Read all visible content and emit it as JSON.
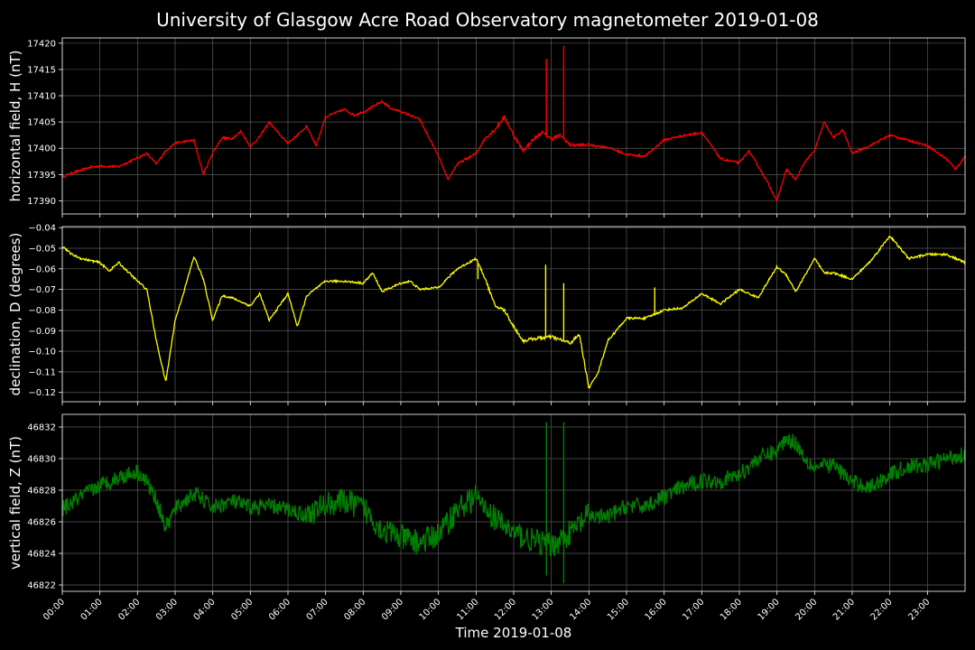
{
  "title": "University of Glasgow Acre Road Observatory magnetometer 2019-01-08",
  "xlabel": "Time 2019-01-08",
  "chart_data": {
    "type": "line",
    "x_ticks": [
      "00:00",
      "01:00",
      "02:00",
      "03:00",
      "04:00",
      "05:00",
      "06:00",
      "07:00",
      "08:00",
      "09:00",
      "10:00",
      "11:00",
      "12:00",
      "13:00",
      "14:00",
      "15:00",
      "16:00",
      "17:00",
      "18:00",
      "19:00",
      "20:00",
      "21:00",
      "22:00",
      "23:00"
    ],
    "xlim_hours": [
      0,
      24
    ],
    "grid": true,
    "background": "#000000",
    "panels": [
      {
        "ylabel": "horizontal field, H (nT)",
        "color": "#ff0000",
        "ylim": [
          17387.5,
          17421
        ],
        "yticks": [
          17390,
          17395,
          17400,
          17405,
          17410,
          17415,
          17420
        ],
        "ytick_labels": [
          "17390",
          "17395",
          "17400",
          "17405",
          "17410",
          "17415",
          "17420"
        ],
        "x_hours": [
          0,
          0.25,
          0.5,
          0.75,
          1,
          1.5,
          2,
          2.25,
          2.5,
          2.75,
          3,
          3.5,
          3.75,
          4,
          4.25,
          4.5,
          4.75,
          5,
          5.25,
          5.5,
          5.75,
          6,
          6.25,
          6.5,
          6.75,
          7,
          7.5,
          7.75,
          8,
          8.5,
          8.75,
          9,
          9.5,
          10,
          10.25,
          10.5,
          11,
          11.25,
          11.5,
          11.75,
          12,
          12.25,
          12.5,
          12.75,
          13,
          13.25,
          13.5,
          14,
          14.5,
          15,
          15.5,
          16,
          16.5,
          17,
          17.5,
          18,
          18.25,
          18.5,
          18.75,
          19,
          19.25,
          19.5,
          19.75,
          20,
          20.25,
          20.5,
          20.75,
          21,
          21.5,
          22,
          22.5,
          23,
          23.5,
          23.75,
          24
        ],
        "values": [
          17394.5,
          17395.3,
          17395.8,
          17396.4,
          17396.6,
          17396.5,
          17398.2,
          17399.0,
          17397.0,
          17399.5,
          17401.0,
          17401.5,
          17395.0,
          17399.2,
          17402.0,
          17401.8,
          17403.2,
          17400.3,
          17402.2,
          17405.0,
          17402.8,
          17401.0,
          17402.5,
          17404.2,
          17400.5,
          17406.0,
          17407.4,
          17406.3,
          17406.9,
          17408.9,
          17407.5,
          17407.0,
          17405.5,
          17398.5,
          17394.0,
          17397.0,
          17399.0,
          17402.0,
          17403.5,
          17406.0,
          17402.5,
          17399.5,
          17401.5,
          17403.0,
          17401.8,
          17402.5,
          17400.6,
          17400.6,
          17400.2,
          17398.8,
          17398.5,
          17401.6,
          17402.4,
          17403.0,
          17398.0,
          17397.2,
          17399.5,
          17396.6,
          17393.5,
          17390.0,
          17396.0,
          17394.0,
          17397.5,
          17399.5,
          17405.0,
          17402.0,
          17403.5,
          17399.0,
          17400.6,
          17402.5,
          17401.5,
          17400.5,
          17398.0,
          17396.0,
          17398.5
        ],
        "spikes": [
          {
            "x_hours": 12.87,
            "value": 17417.0
          },
          {
            "x_hours": 13.33,
            "value": 17419.5
          }
        ]
      },
      {
        "ylabel": "declination, D (degrees)",
        "color": "#ffff00",
        "ylim": [
          -0.1245,
          -0.0395
        ],
        "yticks": [
          -0.12,
          -0.11,
          -0.1,
          -0.09,
          -0.08,
          -0.07,
          -0.06,
          -0.05,
          -0.04
        ],
        "ytick_labels": [
          "−0.12",
          "−0.11",
          "−0.10",
          "−0.09",
          "−0.08",
          "−0.07",
          "−0.06",
          "−0.05",
          "−0.04"
        ],
        "x_hours": [
          0,
          0.25,
          0.5,
          1,
          1.25,
          1.5,
          2,
          2.25,
          2.5,
          2.75,
          3,
          3.25,
          3.5,
          3.75,
          4,
          4.25,
          4.5,
          5,
          5.25,
          5.5,
          6,
          6.25,
          6.5,
          7,
          7.5,
          8,
          8.25,
          8.5,
          9,
          9.25,
          9.5,
          10,
          10.5,
          11,
          11.25,
          11.5,
          11.75,
          12,
          12.25,
          12.5,
          13,
          13.5,
          13.75,
          14,
          14.25,
          14.5,
          15,
          15.5,
          16,
          16.5,
          17,
          17.5,
          18,
          18.5,
          19,
          19.25,
          19.5,
          19.75,
          20,
          20.25,
          20.5,
          21,
          21.5,
          22,
          22.5,
          23,
          23.5,
          24
        ],
        "values": [
          -0.049,
          -0.053,
          -0.055,
          -0.057,
          -0.061,
          -0.057,
          -0.066,
          -0.07,
          -0.095,
          -0.115,
          -0.085,
          -0.07,
          -0.054,
          -0.065,
          -0.085,
          -0.073,
          -0.074,
          -0.078,
          -0.072,
          -0.085,
          -0.072,
          -0.088,
          -0.073,
          -0.066,
          -0.066,
          -0.067,
          -0.062,
          -0.071,
          -0.067,
          -0.066,
          -0.07,
          -0.069,
          -0.06,
          -0.055,
          -0.065,
          -0.078,
          -0.08,
          -0.088,
          -0.095,
          -0.094,
          -0.093,
          -0.096,
          -0.092,
          -0.118,
          -0.11,
          -0.095,
          -0.084,
          -0.084,
          -0.08,
          -0.079,
          -0.072,
          -0.077,
          -0.07,
          -0.074,
          -0.059,
          -0.063,
          -0.071,
          -0.063,
          -0.055,
          -0.062,
          -0.062,
          -0.065,
          -0.056,
          -0.044,
          -0.055,
          -0.053,
          -0.053,
          -0.057
        ],
        "spikes": [
          {
            "x_hours": 12.85,
            "value": -0.058
          },
          {
            "x_hours": 13.33,
            "value": -0.067
          },
          {
            "x_hours": 11.05,
            "value": -0.065
          },
          {
            "x_hours": 15.75,
            "value": -0.069
          }
        ]
      },
      {
        "ylabel": "vertical field, Z (nT)",
        "color": "#008000",
        "ylim": [
          46821.6,
          46832.8
        ],
        "yticks": [
          46822,
          46824,
          46826,
          46828,
          46830,
          46832
        ],
        "ytick_labels": [
          "46822",
          "46824",
          "46826",
          "46828",
          "46830",
          "46832"
        ],
        "x_hours": [
          0,
          0.5,
          1,
          1.5,
          2,
          2.25,
          2.5,
          2.75,
          3,
          3.5,
          4,
          4.5,
          5,
          5.5,
          6,
          6.5,
          7,
          7.5,
          8,
          8.5,
          9,
          9.5,
          10,
          10.5,
          11,
          11.5,
          12,
          12.5,
          13,
          13.5,
          14,
          14.5,
          15,
          15.5,
          16,
          16.5,
          17,
          17.5,
          18,
          18.5,
          19,
          19.25,
          19.5,
          19.75,
          20,
          20.5,
          21,
          21.5,
          22,
          22.5,
          23,
          23.5,
          24
        ],
        "values": [
          46826.8,
          46827.6,
          46828.3,
          46828.8,
          46829.2,
          46828.5,
          46827.4,
          46825.6,
          46826.8,
          46827.8,
          46826.9,
          46827.3,
          46826.9,
          46827.0,
          46826.8,
          46826.4,
          46827.1,
          46827.3,
          46826.9,
          46825.5,
          46825.0,
          46824.7,
          46825.2,
          46826.8,
          46827.6,
          46826.2,
          46825.3,
          46824.8,
          46824.5,
          46825.3,
          46826.4,
          46826.3,
          46827.0,
          46827.0,
          46827.6,
          46828.2,
          46828.6,
          46828.6,
          46829.0,
          46830.0,
          46830.5,
          46831.3,
          46831.0,
          46830.0,
          46829.5,
          46829.6,
          46828.5,
          46828.2,
          46829.0,
          46829.5,
          46829.6,
          46830.0,
          46830.3
        ],
        "noise": 0.9,
        "spikes": [
          {
            "x_hours": 12.87,
            "value": 46832.3,
            "low": 46822.6
          },
          {
            "x_hours": 13.33,
            "value": 46832.3,
            "low": 46822.1
          },
          {
            "x_hours": 15.75,
            "value": 46824.2,
            "low": 46824.2
          }
        ]
      }
    ]
  }
}
